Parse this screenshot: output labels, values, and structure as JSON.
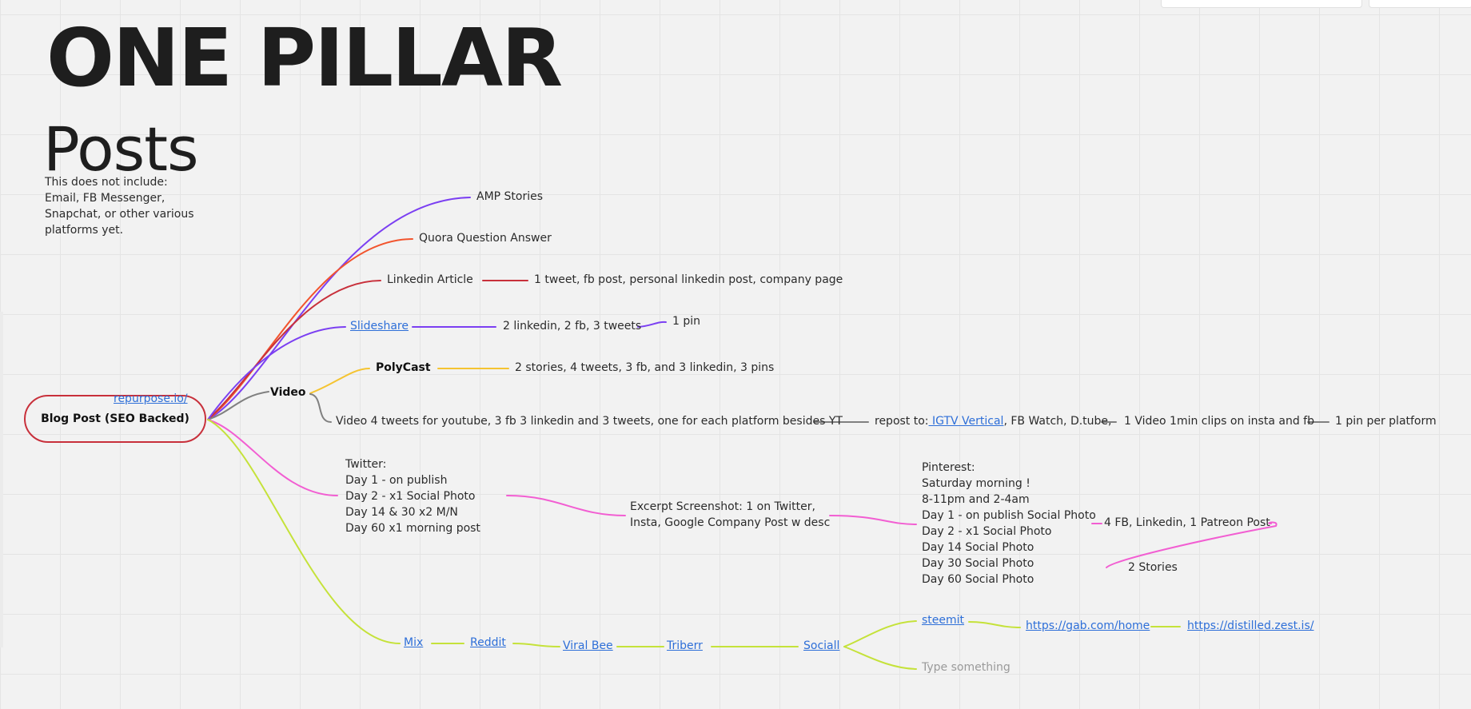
{
  "board": {
    "title": "ONE PILLAR",
    "subtitle": "Posts",
    "note": "This does not include:\nEmail, FB Messenger,\nSnapchat, or other various\nplatforms yet."
  },
  "colors": {
    "purple": "#7b3ff2",
    "red_orange": "#f2542d",
    "dark_red": "#c8303b",
    "yellow": "#f5c431",
    "gray": "#808080",
    "pink": "#f25ed2",
    "lime": "#c5e23a"
  },
  "mindmap": {
    "root": "Blog Post (SEO Backed)",
    "root_link": "repurpose.io/",
    "nodes": {
      "amp": "AMP Stories",
      "quora": "Quora Question Answer",
      "linkedin_article": "Linkedin Article",
      "linkedin_article_child": "1 tweet, fb post, personal linkedin post, company page",
      "slideshare": "Slideshare",
      "slideshare_child": "2 linkedin, 2 fb, 3 tweets",
      "slideshare_grandchild": "1 pin",
      "video": "Video",
      "polycast": "PolyCast",
      "polycast_child": "2 stories, 4 tweets, 3 fb, and 3 linkedin, 3 pins",
      "video_child": "Video 4 tweets for youtube, 3 fb 3 linkedin and 3 tweets, one for each platform besides YT",
      "repost_prefix": "repost to:",
      "repost_link": " IGTV Vertical",
      "repost_suffix": ", FB Watch, D.tube,",
      "video_clips": "1 Video 1min clips on insta and fb",
      "pin_per_platform": "1 pin per platform",
      "twitter": "Twitter:\nDay 1 - on publish\nDay 2 - x1 Social Photo\nDay 14 & 30 x2 M/N\nDay 60 x1 morning post",
      "excerpt": "Excerpt Screenshot: 1 on Twitter,\nInsta, Google Company Post w desc",
      "pinterest": "Pinterest:\nSaturday morning !\n 8-11pm and 2-4am\nDay 1 - on publish Social Photo\nDay 2 - x1 Social Photo\nDay 14 Social Photo\nDay 30    Social Photo\nDay 60  Social Photo",
      "fb_linkedin_patreon": "4 FB, Linkedin, 1 Patreon Post",
      "stories": "2 Stories",
      "mix": "Mix",
      "reddit": "Reddit",
      "viral_bee": "Viral Bee",
      "triberr": "Triberr",
      "sociall": "Sociall",
      "steemit": "steemit",
      "gab": "https://gab.com/home",
      "distilled": "https://distilled.zest.is/",
      "type_something": "Type something"
    }
  }
}
